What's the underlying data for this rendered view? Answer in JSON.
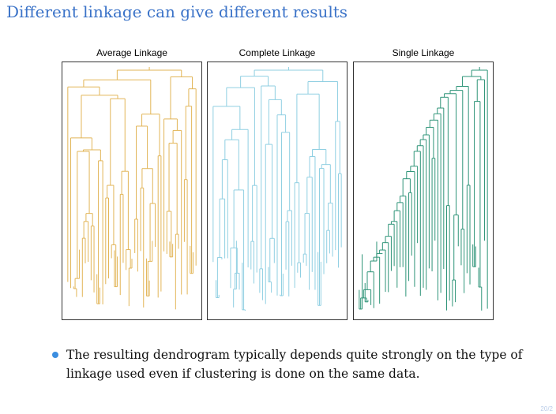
{
  "slide": {
    "title": "Different linkage can give different results",
    "bullet": "The resulting dendrogram typically depends quite strongly on the type of linkage used even if clustering is done on the same data.",
    "page_number": "20/2"
  },
  "colors": {
    "title": "#3b73c8",
    "bullet": "#3b8ee0",
    "average": "#e2b557",
    "complete": "#8fcfe2",
    "single": "#2e9478"
  },
  "panels": [
    {
      "id": "average",
      "label": "Average Linkage",
      "color": "#e2b557",
      "leaves": 45,
      "seed": 7,
      "method": "balanced"
    },
    {
      "id": "complete",
      "label": "Complete Linkage",
      "color": "#8fcfe2",
      "leaves": 45,
      "seed": 19,
      "method": "balanced"
    },
    {
      "id": "single",
      "label": "Single Linkage",
      "color": "#2e9478",
      "leaves": 45,
      "seed": 31,
      "method": "chained"
    }
  ]
}
